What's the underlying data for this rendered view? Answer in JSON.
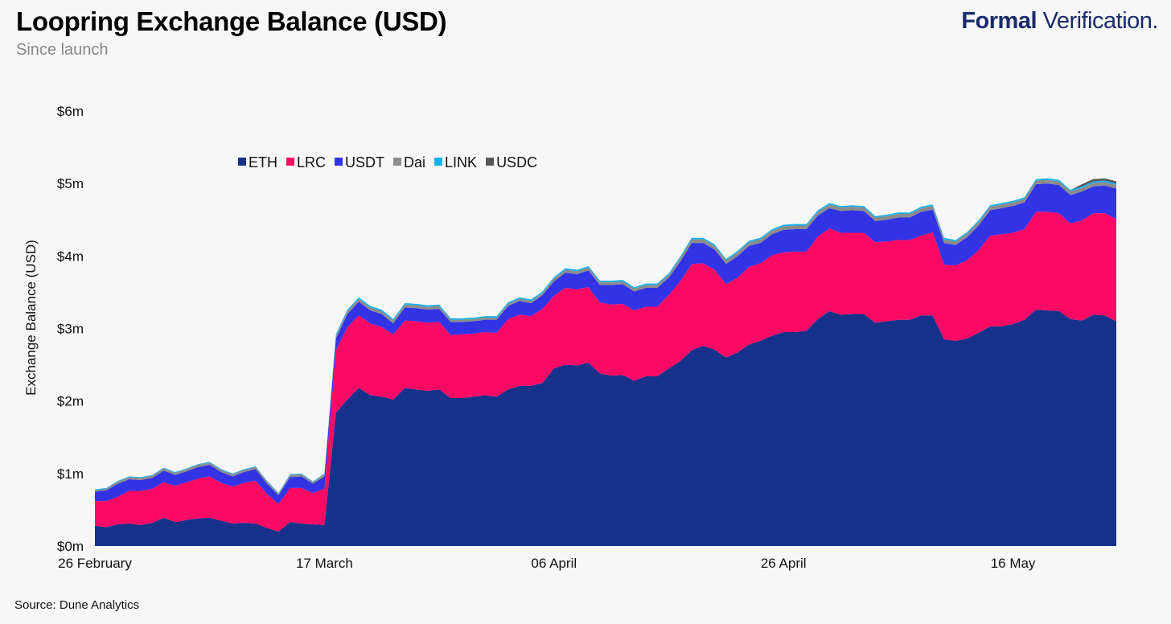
{
  "header": {
    "title": "Loopring Exchange Balance (USD)",
    "subtitle": "Since launch"
  },
  "brand": {
    "bold": "Formal",
    "rest": " Verification."
  },
  "footer": {
    "source": "Source: Dune Analytics"
  },
  "chart_data": {
    "type": "area",
    "stacked": true,
    "ylabel": "Exchange Balance (USD)",
    "ylim": [
      0,
      6000000
    ],
    "yticks": [
      {
        "value": 0,
        "label": "$0m"
      },
      {
        "value": 1000000,
        "label": "$1m"
      },
      {
        "value": 2000000,
        "label": "$2m"
      },
      {
        "value": 3000000,
        "label": "$3m"
      },
      {
        "value": 4000000,
        "label": "$4m"
      },
      {
        "value": 5000000,
        "label": "$5m"
      },
      {
        "value": 6000000,
        "label": "$6m"
      }
    ],
    "xticks": [
      {
        "index": 0,
        "label": "26 February"
      },
      {
        "index": 20,
        "label": "17 March"
      },
      {
        "index": 40,
        "label": "06 April"
      },
      {
        "index": 60,
        "label": "26 April"
      },
      {
        "index": 80,
        "label": "16 May"
      }
    ],
    "legend_position": "top-left",
    "series": [
      {
        "name": "ETH",
        "color": "#16318a",
        "values": [
          0.28,
          0.26,
          0.3,
          0.31,
          0.29,
          0.32,
          0.39,
          0.33,
          0.36,
          0.38,
          0.39,
          0.35,
          0.31,
          0.32,
          0.31,
          0.25,
          0.2,
          0.33,
          0.31,
          0.3,
          0.29,
          1.84,
          2.02,
          2.18,
          2.08,
          2.06,
          2.02,
          2.18,
          2.16,
          2.14,
          2.16,
          2.04,
          2.04,
          2.06,
          2.08,
          2.06,
          2.16,
          2.21,
          2.21,
          2.25,
          2.45,
          2.5,
          2.49,
          2.53,
          2.38,
          2.35,
          2.36,
          2.28,
          2.34,
          2.34,
          2.45,
          2.55,
          2.7,
          2.76,
          2.71,
          2.6,
          2.67,
          2.78,
          2.83,
          2.9,
          2.95,
          2.95,
          2.97,
          3.13,
          3.24,
          3.19,
          3.2,
          3.2,
          3.08,
          3.1,
          3.12,
          3.12,
          3.18,
          3.18,
          2.85,
          2.83,
          2.86,
          2.94,
          3.03,
          3.03,
          3.06,
          3.12,
          3.26,
          3.25,
          3.24,
          3.13,
          3.11,
          3.19,
          3.18,
          3.1
        ]
      },
      {
        "name": "LRC",
        "color": "#fe0a64",
        "values": [
          0.34,
          0.36,
          0.38,
          0.45,
          0.47,
          0.47,
          0.49,
          0.5,
          0.52,
          0.55,
          0.57,
          0.52,
          0.51,
          0.55,
          0.59,
          0.47,
          0.38,
          0.47,
          0.49,
          0.43,
          0.5,
          0.86,
          1.0,
          1.0,
          0.99,
          0.96,
          0.9,
          0.93,
          0.94,
          0.94,
          0.93,
          0.87,
          0.88,
          0.87,
          0.87,
          0.88,
          0.97,
          0.98,
          0.96,
          1.02,
          1.0,
          1.06,
          1.05,
          1.04,
          0.98,
          0.98,
          0.98,
          0.97,
          0.96,
          0.96,
          1.01,
          1.1,
          1.19,
          1.14,
          1.1,
          1.01,
          1.03,
          1.07,
          1.07,
          1.11,
          1.1,
          1.11,
          1.09,
          1.14,
          1.14,
          1.13,
          1.12,
          1.12,
          1.11,
          1.1,
          1.1,
          1.1,
          1.1,
          1.15,
          1.03,
          1.04,
          1.08,
          1.14,
          1.25,
          1.27,
          1.26,
          1.25,
          1.35,
          1.36,
          1.35,
          1.32,
          1.38,
          1.4,
          1.41,
          1.41
        ]
      },
      {
        "name": "USDT",
        "color": "#3333e6",
        "values": [
          0.13,
          0.15,
          0.18,
          0.16,
          0.15,
          0.15,
          0.16,
          0.15,
          0.15,
          0.16,
          0.16,
          0.15,
          0.14,
          0.15,
          0.16,
          0.14,
          0.12,
          0.15,
          0.16,
          0.13,
          0.17,
          0.16,
          0.18,
          0.19,
          0.18,
          0.18,
          0.15,
          0.18,
          0.18,
          0.18,
          0.18,
          0.18,
          0.17,
          0.17,
          0.17,
          0.18,
          0.18,
          0.19,
          0.18,
          0.19,
          0.2,
          0.21,
          0.21,
          0.23,
          0.24,
          0.27,
          0.27,
          0.26,
          0.26,
          0.26,
          0.24,
          0.27,
          0.29,
          0.28,
          0.28,
          0.28,
          0.3,
          0.29,
          0.28,
          0.29,
          0.31,
          0.31,
          0.31,
          0.29,
          0.28,
          0.3,
          0.31,
          0.3,
          0.29,
          0.3,
          0.31,
          0.31,
          0.33,
          0.31,
          0.3,
          0.28,
          0.32,
          0.34,
          0.35,
          0.36,
          0.37,
          0.37,
          0.38,
          0.39,
          0.39,
          0.39,
          0.4,
          0.37,
          0.38,
          0.42
        ]
      },
      {
        "name": "Dai",
        "color": "#8c8c8c",
        "values": [
          0.02,
          0.02,
          0.03,
          0.03,
          0.03,
          0.03,
          0.03,
          0.03,
          0.03,
          0.03,
          0.03,
          0.03,
          0.03,
          0.03,
          0.03,
          0.03,
          0.02,
          0.03,
          0.03,
          0.02,
          0.03,
          0.04,
          0.04,
          0.04,
          0.04,
          0.04,
          0.04,
          0.04,
          0.04,
          0.04,
          0.04,
          0.03,
          0.03,
          0.03,
          0.03,
          0.03,
          0.03,
          0.03,
          0.03,
          0.03,
          0.04,
          0.04,
          0.04,
          0.04,
          0.04,
          0.04,
          0.04,
          0.04,
          0.04,
          0.04,
          0.04,
          0.05,
          0.05,
          0.05,
          0.05,
          0.05,
          0.05,
          0.05,
          0.05,
          0.05,
          0.05,
          0.05,
          0.05,
          0.05,
          0.05,
          0.05,
          0.05,
          0.05,
          0.05,
          0.05,
          0.05,
          0.05,
          0.05,
          0.05,
          0.05,
          0.05,
          0.05,
          0.05,
          0.05,
          0.05,
          0.05,
          0.05,
          0.05,
          0.05,
          0.05,
          0.05,
          0.05,
          0.05,
          0.05,
          0.05
        ]
      },
      {
        "name": "LINK",
        "color": "#14b0f0",
        "values": [
          0.01,
          0.01,
          0.01,
          0.01,
          0.01,
          0.01,
          0.01,
          0.01,
          0.01,
          0.01,
          0.01,
          0.01,
          0.01,
          0.01,
          0.01,
          0.01,
          0.01,
          0.01,
          0.01,
          0.01,
          0.01,
          0.02,
          0.02,
          0.02,
          0.02,
          0.02,
          0.02,
          0.02,
          0.02,
          0.02,
          0.02,
          0.02,
          0.02,
          0.02,
          0.02,
          0.02,
          0.02,
          0.02,
          0.02,
          0.02,
          0.02,
          0.02,
          0.02,
          0.02,
          0.02,
          0.02,
          0.02,
          0.02,
          0.02,
          0.02,
          0.02,
          0.02,
          0.02,
          0.02,
          0.02,
          0.02,
          0.02,
          0.02,
          0.02,
          0.02,
          0.02,
          0.02,
          0.02,
          0.02,
          0.02,
          0.02,
          0.02,
          0.02,
          0.02,
          0.02,
          0.02,
          0.02,
          0.02,
          0.02,
          0.02,
          0.02,
          0.02,
          0.02,
          0.02,
          0.02,
          0.02,
          0.02,
          0.02,
          0.02,
          0.02,
          0.02,
          0.02,
          0.02,
          0.02,
          0.02
        ]
      },
      {
        "name": "USDC",
        "color": "#555555",
        "values": [
          0.0,
          0.0,
          0.0,
          0.0,
          0.0,
          0.0,
          0.0,
          0.0,
          0.0,
          0.0,
          0.0,
          0.0,
          0.0,
          0.0,
          0.0,
          0.0,
          0.0,
          0.0,
          0.0,
          0.0,
          0.0,
          0.0,
          0.0,
          0.0,
          0.0,
          0.0,
          0.0,
          0.0,
          0.0,
          0.0,
          0.0,
          0.0,
          0.0,
          0.0,
          0.0,
          0.0,
          0.0,
          0.0,
          0.0,
          0.0,
          0.0,
          0.0,
          0.0,
          0.0,
          0.0,
          0.0,
          0.0,
          0.0,
          0.0,
          0.0,
          0.0,
          0.0,
          0.0,
          0.0,
          0.0,
          0.0,
          0.0,
          0.0,
          0.0,
          0.0,
          0.0,
          0.0,
          0.0,
          0.0,
          0.0,
          0.0,
          0.0,
          0.0,
          0.0,
          0.0,
          0.0,
          0.0,
          0.0,
          0.0,
          0.0,
          0.0,
          0.0,
          0.0,
          0.0,
          0.0,
          0.0,
          0.0,
          0.0,
          0.0,
          0.0,
          0.0,
          0.03,
          0.03,
          0.03,
          0.03
        ]
      }
    ]
  }
}
